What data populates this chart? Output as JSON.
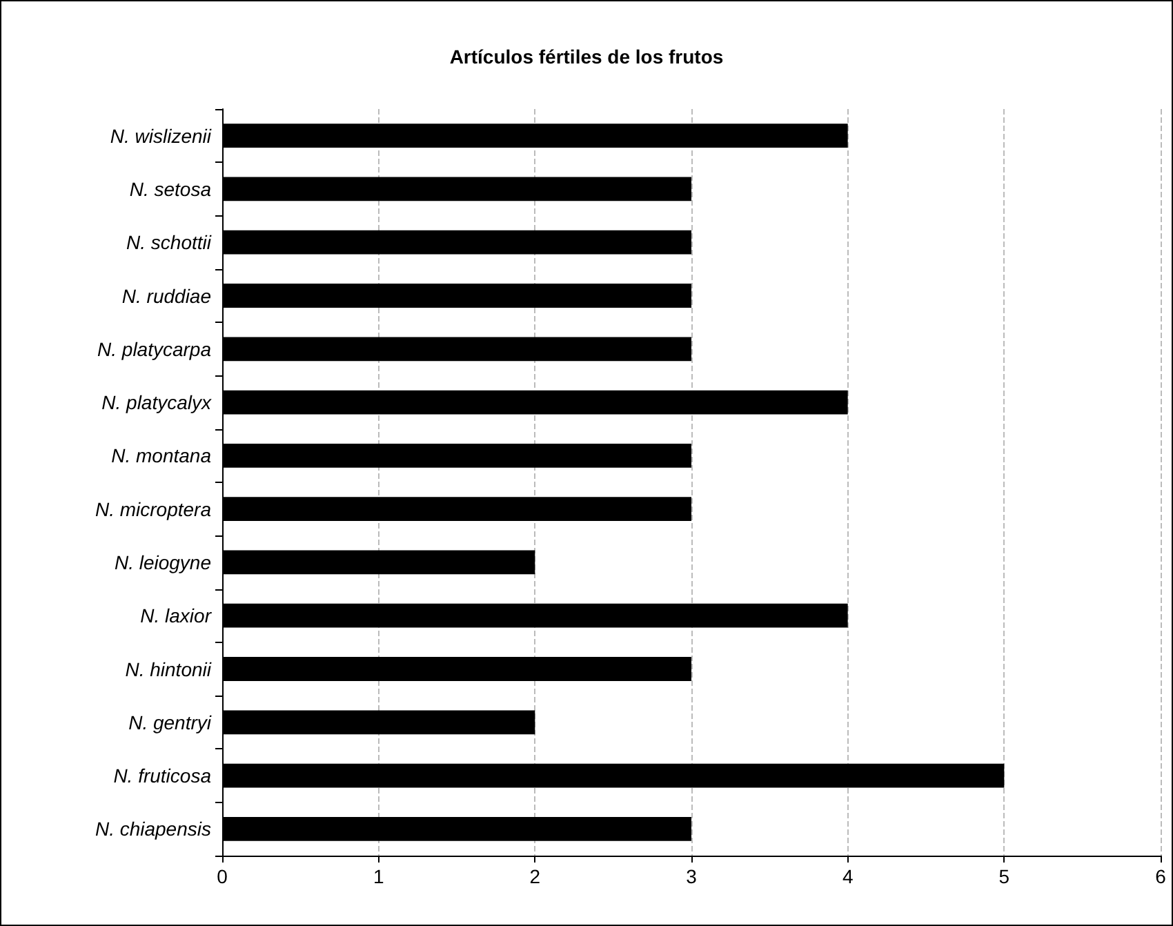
{
  "chart_data": {
    "type": "bar",
    "orientation": "horizontal",
    "title": "Artículos fértiles de los frutos",
    "categories": [
      "N. wislizenii",
      "N. setosa",
      "N. schottii",
      "N. ruddiae",
      "N. platycarpa",
      "N. platycalyx",
      "N. montana",
      "N. microptera",
      "N. leiogyne",
      "N. laxior",
      "N. hintonii",
      "N. gentryi",
      "N. fruticosa",
      "N. chiapensis"
    ],
    "values": [
      4,
      3,
      3,
      3,
      3,
      4,
      3,
      3,
      2,
      4,
      3,
      2,
      5,
      3
    ],
    "color": "#000000",
    "xlim": [
      0,
      6
    ],
    "xticks": [
      0,
      1,
      2,
      3,
      4,
      5,
      6
    ],
    "grid": "x"
  }
}
